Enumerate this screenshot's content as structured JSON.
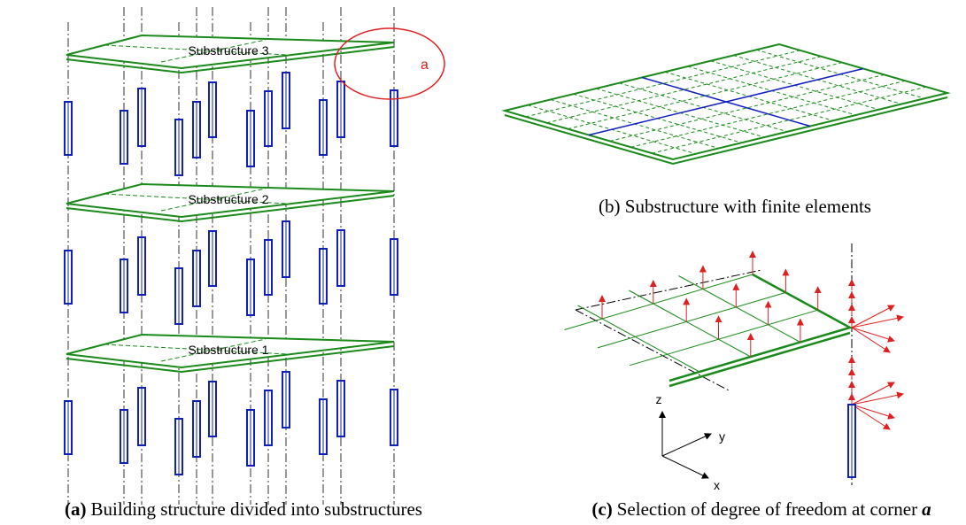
{
  "panel_a": {
    "slab_labels": [
      "Substructure 3",
      "Substructure 2",
      "Substructure 1"
    ],
    "corner_label": "a",
    "caption": {
      "label": "(a)",
      "text": "Building structure divided into substructures"
    }
  },
  "panel_b": {
    "caption": "(b) Substructure with finite elements"
  },
  "panel_c": {
    "axes": {
      "z": "z",
      "y": "y",
      "x": "x"
    },
    "caption": {
      "label": "(c)",
      "text": "Selection of degree of freedom at corner",
      "corner": "a"
    }
  }
}
